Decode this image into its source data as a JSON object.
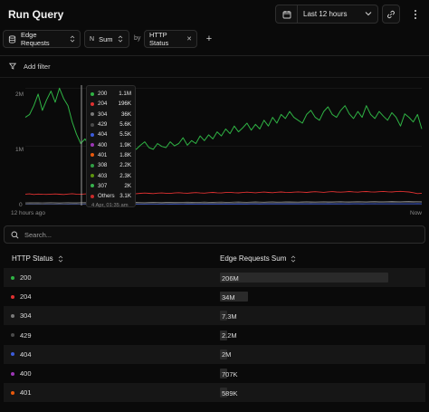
{
  "header": {
    "title": "Run Query",
    "time_range": "Last 12 hours"
  },
  "query": {
    "metric": "Edge Requests",
    "aggregation": "Sum",
    "by_label": "by",
    "group_by": "HTTP Status"
  },
  "filter": {
    "add_label": "Add filter"
  },
  "chart_data": {
    "type": "line",
    "y_ticks": [
      "2M",
      "1M",
      "0"
    ],
    "x_tick_labels": [
      "12 hours ago",
      "Now"
    ],
    "ylim": [
      0,
      2100000
    ],
    "grid": "horizontal",
    "colors": {
      "200": "#2fb344",
      "204": "#e03131",
      "304": "#7a7a7a",
      "429": "#4a4a4a",
      "404": "#3b5bdb",
      "400": "#9c36b5",
      "401": "#e8590c"
    },
    "series": [
      {
        "name": "200",
        "color": "#2fb344",
        "values": [
          1500000,
          1550000,
          1700000,
          1900000,
          1620000,
          1800000,
          1950000,
          1760000,
          2000000,
          1820000,
          1700000,
          1420000,
          1210000,
          1050000,
          1130000,
          1010000,
          960000,
          1200000,
          1050000,
          920000,
          1000000,
          1100000,
          1050000,
          990000,
          930000,
          1000000,
          950000,
          1020000,
          1080000,
          980000,
          950000,
          1050000,
          1000000,
          980000,
          1080000,
          1010000,
          1050000,
          1150000,
          1020000,
          1100000,
          1050000,
          1180000,
          1100000,
          1200000,
          1130000,
          1250000,
          1180000,
          1300000,
          1220000,
          1350000,
          1250000,
          1320000,
          1400000,
          1280000,
          1380000,
          1300000,
          1450000,
          1350000,
          1500000,
          1400000,
          1550000,
          1480000,
          1600000,
          1500000,
          1450000,
          1400000,
          1550000,
          1620000,
          1500000,
          1450000,
          1600000,
          1680000,
          1550000,
          1500000,
          1620000,
          1700000,
          1560000,
          1480000,
          1600000,
          1500000,
          1700000,
          1550000,
          1480000,
          1600000,
          1520000,
          1450000,
          1580000,
          1500000,
          1350000,
          1560000,
          1500000,
          1420000,
          1550000,
          1300000
        ]
      },
      {
        "name": "204",
        "color": "#e03131",
        "values": [
          180000,
          185000,
          175000,
          182000,
          178000,
          176000,
          180000,
          183000,
          179000,
          175000,
          182000,
          188000,
          181000,
          177000,
          183000,
          186000,
          190000,
          184000,
          180000,
          187000,
          193000,
          189000,
          184000,
          190000,
          196000,
          192000,
          188000,
          195000,
          199000,
          194000,
          190000,
          197000,
          201000,
          196000,
          193000,
          200000,
          205000,
          199000,
          196000,
          203000,
          207000,
          201000,
          198000,
          205000,
          210000,
          204000,
          200000,
          208000,
          212000,
          206000,
          202000,
          209000,
          214000,
          208000,
          204000,
          211000,
          216000,
          210000,
          206000,
          213000,
          218000,
          212000,
          208000,
          215000,
          220000,
          214000,
          210000,
          217000,
          222000,
          216000,
          212000,
          219000,
          224000,
          218000,
          214000,
          220000,
          225000,
          219000,
          215000,
          222000,
          226000,
          220000,
          216000,
          223000,
          227000,
          221000,
          217000,
          224000,
          228000,
          222000,
          218000,
          205000,
          190000,
          196000
        ]
      },
      {
        "name": "304",
        "color": "#7a7a7a",
        "values": [
          30000,
          32000,
          31000,
          33000,
          30000,
          32000,
          34000,
          31000,
          30000,
          33000,
          35000,
          32000,
          31000,
          34000,
          36000,
          33000,
          32000,
          35000,
          37000,
          34000,
          33000,
          36000,
          38000,
          35000,
          34000,
          37000,
          39000,
          36000,
          35000,
          38000,
          40000,
          37000,
          36000,
          39000,
          41000,
          38000,
          37000,
          40000,
          42000,
          39000,
          38000,
          41000,
          43000,
          40000,
          39000,
          42000,
          44000,
          41000,
          40000,
          43000,
          45000,
          42000,
          41000,
          44000,
          46000,
          43000,
          42000,
          45000,
          47000,
          44000,
          43000,
          46000,
          48000,
          45000,
          44000,
          47000,
          49000,
          46000,
          45000,
          48000,
          50000,
          47000,
          46000,
          49000,
          51000,
          48000,
          47000,
          50000,
          52000,
          49000,
          48000,
          51000,
          53000,
          50000,
          49000,
          52000,
          54000,
          51000,
          50000,
          53000,
          55000,
          52000,
          51000,
          50000
        ]
      },
      {
        "name": "429",
        "color": "#4a4a4a",
        "values": [
          10000,
          12000,
          11000,
          13000,
          10000,
          14000,
          12000,
          11000,
          15000,
          13000,
          12000,
          16000,
          14000,
          13000,
          17000,
          15000,
          14000,
          18000,
          16000,
          15000,
          19000,
          17000,
          16000,
          20000,
          18000,
          17000,
          21000,
          19000,
          18000,
          22000,
          20000,
          19000,
          23000,
          21000,
          20000,
          24000,
          22000,
          21000,
          25000,
          23000,
          22000,
          26000,
          24000,
          23000,
          27000,
          25000,
          24000,
          28000,
          26000,
          25000,
          29000,
          27000,
          26000,
          30000,
          28000,
          27000,
          31000,
          29000,
          28000,
          32000,
          30000,
          29000,
          33000,
          31000,
          30000,
          34000,
          32000,
          31000,
          35000,
          33000,
          32000,
          36000,
          34000,
          33000,
          37000,
          35000,
          34000,
          38000,
          36000,
          35000,
          39000,
          37000,
          36000,
          40000,
          38000,
          37000,
          41000,
          39000,
          38000,
          42000,
          40000,
          39000,
          43000,
          41000
        ]
      },
      {
        "name": "404",
        "color": "#3b5bdb",
        "values": [
          8000,
          8500,
          8200,
          8800,
          8300,
          9000,
          8600,
          8400,
          9200,
          8800,
          8500,
          9400,
          9000,
          8700,
          9600,
          9200,
          8900,
          9800,
          9400,
          9100,
          10000,
          9600,
          9300,
          10200,
          9800,
          9500,
          10400,
          10000,
          9700,
          10600,
          10200,
          9900,
          10800,
          10400,
          10100,
          11000,
          10600,
          10300,
          11200,
          10800,
          10500,
          11400,
          11000,
          10700,
          11600,
          11200,
          10900,
          11800,
          11400,
          11100,
          12000,
          11600,
          11300,
          12200,
          11800,
          11500,
          12400,
          12000,
          11700,
          12600,
          12200,
          11900,
          12800,
          12400,
          12100,
          13000,
          12600,
          12300,
          13200,
          12800,
          12500,
          13400,
          13000,
          12700,
          13600,
          13200,
          12900,
          13800,
          13400,
          13100,
          14000,
          13600,
          13300,
          14200,
          13800,
          13500,
          14400,
          14000,
          13700,
          14600,
          14200,
          13900,
          14800,
          14400
        ]
      }
    ]
  },
  "tooltip": {
    "rows": [
      {
        "name": "200",
        "value": "1.1M",
        "color": "#2fb344"
      },
      {
        "name": "204",
        "value": "196K",
        "color": "#e03131"
      },
      {
        "name": "304",
        "value": "36K",
        "color": "#7a7a7a"
      },
      {
        "name": "429",
        "value": "5.6K",
        "color": "#4a4a4a"
      },
      {
        "name": "404",
        "value": "5.5K",
        "color": "#3b5bdb"
      },
      {
        "name": "400",
        "value": "1.9K",
        "color": "#9c36b5"
      },
      {
        "name": "401",
        "value": "1.8K",
        "color": "#e8590c"
      },
      {
        "name": "308",
        "value": "2.2K",
        "color": "#2f9e44"
      },
      {
        "name": "403",
        "value": "2.3K",
        "color": "#5c940d"
      },
      {
        "name": "307",
        "value": "2K",
        "color": "#37b24d"
      },
      {
        "name": "Others",
        "value": "3.1K",
        "color": "#c92a2a"
      }
    ],
    "time": "4 Apr, 01:35 am"
  },
  "search": {
    "placeholder": "Search..."
  },
  "table": {
    "headers": [
      "HTTP Status",
      "Edge Requests Sum"
    ],
    "max_value": 206000000,
    "rows": [
      {
        "status": "200",
        "sum_label": "206M",
        "value": 206000000,
        "color": "#2fb344"
      },
      {
        "status": "204",
        "sum_label": "34M",
        "value": 34000000,
        "color": "#e03131"
      },
      {
        "status": "304",
        "sum_label": "7.3M",
        "value": 7300000,
        "color": "#7a7a7a"
      },
      {
        "status": "429",
        "sum_label": "2.2M",
        "value": 2200000,
        "color": "#4a4a4a"
      },
      {
        "status": "404",
        "sum_label": "2M",
        "value": 2000000,
        "color": "#3b5bdb"
      },
      {
        "status": "400",
        "sum_label": "707K",
        "value": 707000,
        "color": "#9c36b5"
      },
      {
        "status": "401",
        "sum_label": "589K",
        "value": 589000,
        "color": "#e8590c"
      }
    ]
  }
}
